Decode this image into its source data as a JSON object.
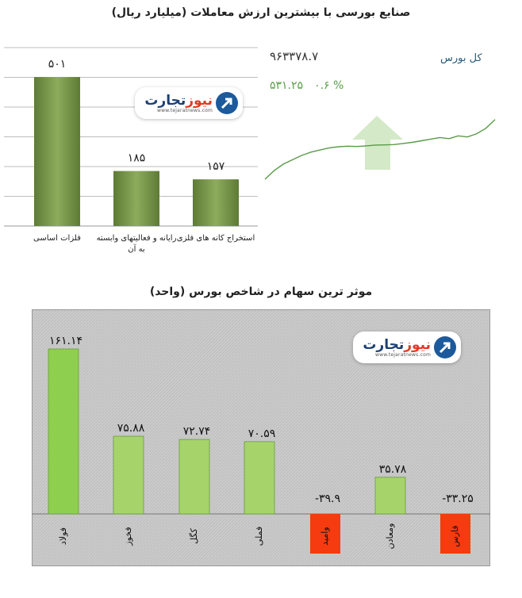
{
  "top": {
    "title": "صنایع بورسی با بیشترین ارزش معاملات (میلیارد ریال)"
  },
  "index_panel": {
    "index_name": "کل بورس",
    "index_value": "۹۶۳۳۷۸.۷",
    "change_value": "۵۳۱.۲۵",
    "change_percent": "۰.۶ %",
    "trend_color": "#5a9a4a",
    "arrow_color": "#d4e9c7"
  },
  "bottom": {
    "title": "موثر ترین سهام در شاخص بورس (واحد)"
  },
  "logo": {
    "brand_red": "تجارت",
    "brand_blue": "نیوز",
    "url": "www.tejaratnews.com"
  },
  "colors": {
    "bar_green": "#8dac5c",
    "bar_green_dark": "#5e7b35",
    "bar_light_green": "#8fcf4f",
    "bar_red": "#f53b0f",
    "panel_bg": "#c9c9c9"
  },
  "chart_data": [
    {
      "type": "bar",
      "title": "صنایع بورسی با بیشترین ارزش معاملات (میلیارد ریال)",
      "categories": [
        "فلزات اساسی",
        "رایانه و فعالیتهای وابسته به آن",
        "استخراج کانه های فلزی"
      ],
      "values": [
        501,
        185,
        157
      ],
      "value_labels": [
        "۵۰۱",
        "۱۸۵",
        "۱۵۷"
      ],
      "ylim": [
        0,
        600
      ],
      "grid": true
    },
    {
      "type": "line",
      "series": [
        {
          "values": [
            0,
            8,
            14,
            18,
            22,
            25,
            27,
            29,
            30,
            30.5,
            30.2,
            30.8,
            31.5,
            31.7,
            32,
            33,
            34,
            35.5,
            37,
            38.5,
            37.5,
            40,
            39,
            42,
            47,
            55
          ]
        }
      ],
      "ylim": [
        0,
        60
      ]
    },
    {
      "type": "bar",
      "title": "موثر ترین سهام در شاخص بورس (واحد)",
      "categories": [
        "فولاد",
        "فخوز",
        "کگل",
        "فملی",
        "وامید",
        "ومعادن",
        "فارس"
      ],
      "values": [
        161.14,
        75.88,
        72.74,
        70.59,
        -39.9,
        35.78,
        -33.25
      ],
      "value_labels": [
        "۱۶۱.۱۴",
        "۷۵.۸۸",
        "۷۲.۷۴",
        "۷۰.۵۹",
        "-۳۹.۹",
        "۳۵.۷۸",
        "-۳۳.۲۵"
      ],
      "grid": true
    }
  ]
}
